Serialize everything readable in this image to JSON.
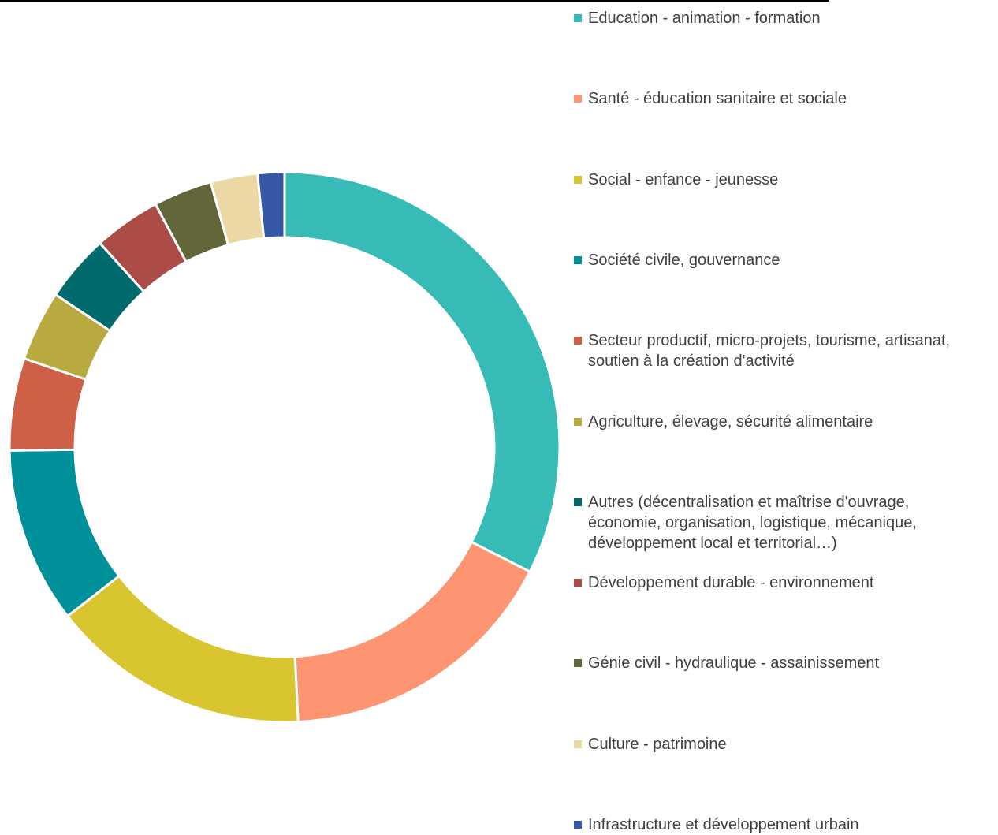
{
  "chart_data": {
    "type": "pie",
    "variant": "donut",
    "legend_position": "right",
    "title": "",
    "slices": [
      {
        "label": "Education - animation - formation",
        "value": 33.0,
        "color": "#36BBB6"
      },
      {
        "label": "Santé - éducation sanitaire et sociale",
        "value": 17.0,
        "color": "#FD9573"
      },
      {
        "label": "Social - enfance - jeunesse",
        "value": 15.5,
        "color": "#D8C530"
      },
      {
        "label": "Société civile, gouvernance",
        "value": 10.5,
        "color": "#00909A"
      },
      {
        "label": "Secteur productif, micro-projets, tourisme, artisanat,\nsoutien à la création d'activité",
        "value": 5.5,
        "color": "#CE6048"
      },
      {
        "label": "Agriculture, élevage, sécurité alimentaire",
        "value": 4.2,
        "color": "#B9AA3F"
      },
      {
        "label": "Autres (décentralisation et maîtrise d'ouvrage,\néconomie, organisation, logistique, mécanique,\ndéveloppement local et territorial…)",
        "value": 4.0,
        "color": "#006A6C"
      },
      {
        "label": "Développement durable - environnement",
        "value": 4.0,
        "color": "#AC4C47"
      },
      {
        "label": "Génie civil - hydraulique - assainissement",
        "value": 3.5,
        "color": "#636639"
      },
      {
        "label": "Culture - patrimoine",
        "value": 2.8,
        "color": "#ECD8A4"
      },
      {
        "label": "Infrastructure et développement urbain",
        "value": 1.6,
        "color": "#3559A6"
      }
    ]
  }
}
